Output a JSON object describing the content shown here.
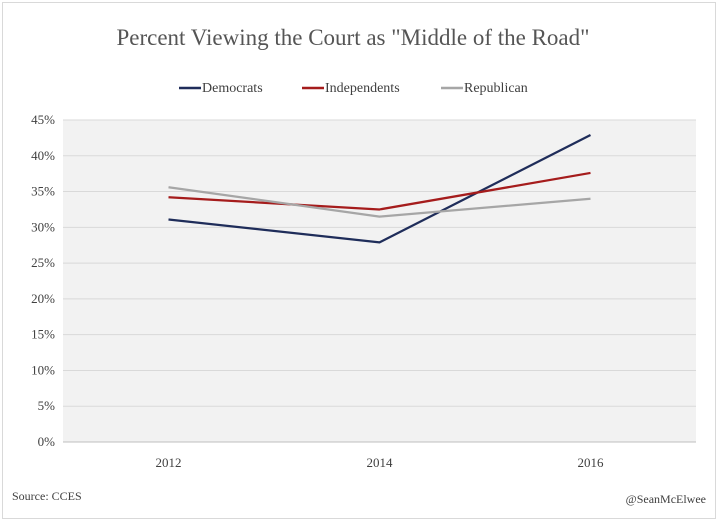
{
  "chart_data": {
    "type": "line",
    "title": "Percent Viewing the Court as \"Middle of the Road\"",
    "categories": [
      "2012",
      "2014",
      "2016"
    ],
    "series": [
      {
        "name": "Democrats",
        "values": [
          31.1,
          27.9,
          42.9
        ],
        "color": "#1f2d5a"
      },
      {
        "name": "Independents",
        "values": [
          34.2,
          32.5,
          37.6
        ],
        "color": "#a51c1c"
      },
      {
        "name": "Republican",
        "values": [
          35.6,
          31.5,
          34.0
        ],
        "color": "#a6a6a6"
      }
    ],
    "ylim": [
      0,
      45
    ],
    "yticks": [
      "0%",
      "5%",
      "10%",
      "15%",
      "20%",
      "25%",
      "30%",
      "35%",
      "40%",
      "45%"
    ],
    "ytick_values": [
      0,
      5,
      10,
      15,
      20,
      25,
      30,
      35,
      40,
      45
    ],
    "legend_position": "top",
    "grid": true,
    "plot_background": "#f2f2f2",
    "source": "Source: CCES",
    "credit": "@SeanMcElwee"
  }
}
